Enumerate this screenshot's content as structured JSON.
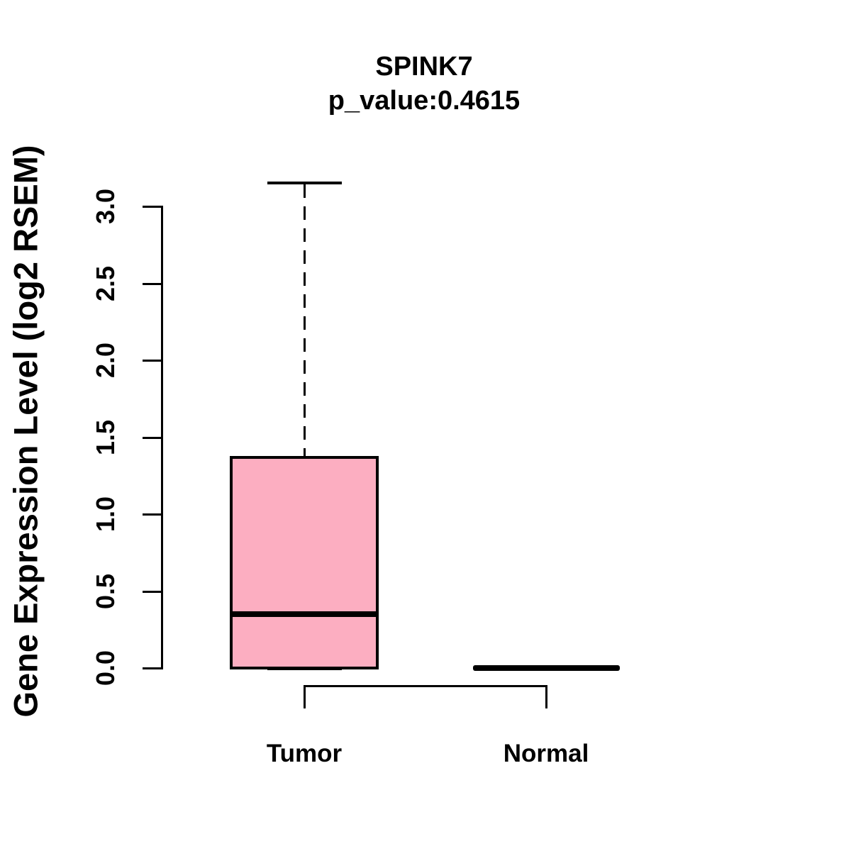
{
  "page": {
    "background": "#FFFFFF"
  },
  "chart_data": {
    "type": "boxplot",
    "title": "SPINK7",
    "subtitle": "p_value:0.4615",
    "ylabel": "Gene Expression Level (log2 RSEM)",
    "xlabel": "",
    "categories": [
      "Tumor",
      "Normal"
    ],
    "yticks": [
      0.0,
      0.5,
      1.0,
      1.5,
      2.0,
      2.5,
      3.0
    ],
    "ytick_labels": [
      "0.0",
      "0.5",
      "1.0",
      "1.5",
      "2.0",
      "2.5",
      "3.0"
    ],
    "ylim": [
      0.0,
      3.17
    ],
    "grid": false,
    "legend": "none",
    "series": [
      {
        "name": "Tumor",
        "lower_whisker": 0.0,
        "q1": 0.0,
        "median": 0.35,
        "q3": 1.37,
        "upper_whisker": 3.15
      },
      {
        "name": "Normal",
        "lower_whisker": 0.0,
        "q1": 0.0,
        "median": 0.0,
        "q3": 0.0,
        "upper_whisker": 0.0
      }
    ],
    "colors": {
      "box_fill": "#FCAEC1",
      "box_border": "#000000",
      "text": "#000000",
      "background": "#FFFFFF"
    },
    "annotations": [
      {
        "kind": "comparison-bracket",
        "from": "Tumor",
        "to": "Normal"
      }
    ]
  }
}
